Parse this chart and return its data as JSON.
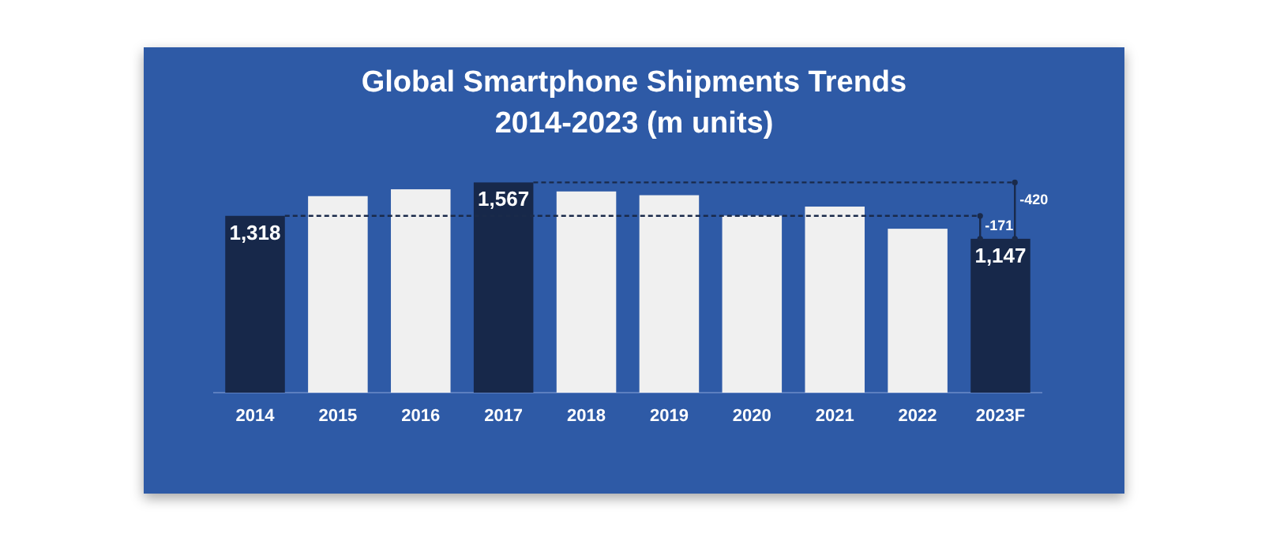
{
  "chart_data": {
    "type": "bar",
    "title": "Global Smartphone Shipments Trends",
    "subtitle": "2014-2023 (m units)",
    "categories": [
      "2014",
      "2015",
      "2016",
      "2017",
      "2018",
      "2019",
      "2020",
      "2021",
      "2022",
      "2023F"
    ],
    "values": [
      1318,
      1465,
      1516,
      1567,
      1500,
      1472,
      1320,
      1387,
      1222,
      1147
    ],
    "colors": [
      "#17284a",
      "#f0f0f0",
      "#f0f0f0",
      "#17284a",
      "#f0f0f0",
      "#f0f0f0",
      "#f0f0f0",
      "#f0f0f0",
      "#f0f0f0",
      "#17284a"
    ],
    "value_labels": [
      "1,318",
      null,
      null,
      "1,567",
      null,
      null,
      null,
      null,
      null,
      "1,147"
    ],
    "ref_lines": [
      {
        "axis": "y",
        "value": 1318,
        "label": null,
        "color": "#1a2a4a",
        "line_style": "dashed"
      },
      {
        "axis": "y",
        "value": 1567,
        "label": null,
        "color": "#1a2a4a",
        "line_style": "dashed"
      }
    ],
    "annotations": [
      "-171",
      "-420"
    ]
  }
}
